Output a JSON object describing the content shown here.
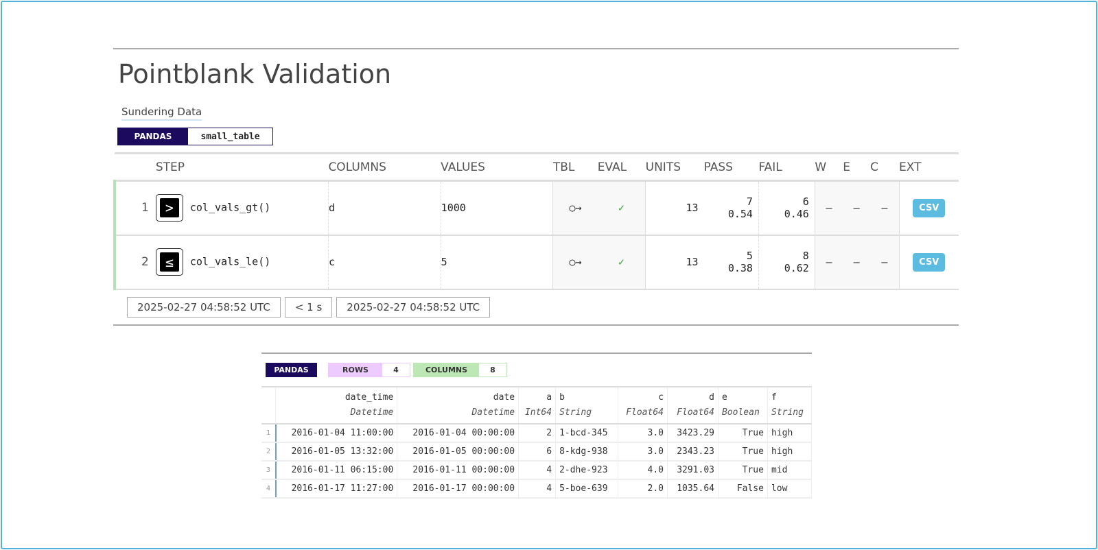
{
  "title": "Pointblank Validation",
  "label": "Sundering Data",
  "tbl_badge": {
    "type": "PANDAS",
    "name": "small_table"
  },
  "headers": {
    "step": "STEP",
    "columns": "COLUMNS",
    "values": "VALUES",
    "tbl": "TBL",
    "eval": "EVAL",
    "units": "UNITS",
    "pass": "PASS",
    "fail": "FAIL",
    "w": "W",
    "e": "E",
    "c": "C",
    "ext": "EXT"
  },
  "steps": [
    {
      "i": "1",
      "icon": "greater-than-icon",
      "glyph": ">",
      "fn": "col_vals_gt()",
      "column": "d",
      "value": "1000",
      "tbl": "○→",
      "eval": "✓",
      "units": "13",
      "pass_n": "7",
      "pass_f": "0.54",
      "fail_n": "6",
      "fail_f": "0.46",
      "w": "—",
      "e": "—",
      "c": "—",
      "ext": "CSV"
    },
    {
      "i": "2",
      "icon": "less-equal-icon",
      "glyph": "≤",
      "fn": "col_vals_le()",
      "column": "c",
      "value": "5",
      "tbl": "○→",
      "eval": "✓",
      "units": "13",
      "pass_n": "5",
      "pass_f": "0.38",
      "fail_n": "8",
      "fail_f": "0.62",
      "w": "—",
      "e": "—",
      "c": "—",
      "ext": "CSV"
    }
  ],
  "footer": {
    "start": "2025-02-27 04:58:52 UTC",
    "duration": "< 1 s",
    "end": "2025-02-27 04:58:52 UTC"
  },
  "preview": {
    "type": "PANDAS",
    "rows_label": "ROWS",
    "rows": "4",
    "cols_label": "COLUMNS",
    "cols": "8",
    "columns": [
      {
        "name": "date_time",
        "dtype": "Datetime"
      },
      {
        "name": "date",
        "dtype": "Datetime"
      },
      {
        "name": "a",
        "dtype": "Int64"
      },
      {
        "name": "b",
        "dtype": "String"
      },
      {
        "name": "c",
        "dtype": "Float64"
      },
      {
        "name": "d",
        "dtype": "Float64"
      },
      {
        "name": "e",
        "dtype": "Boolean"
      },
      {
        "name": "f",
        "dtype": "String"
      }
    ],
    "rows_data": [
      {
        "n": "1",
        "v": [
          "2016-01-04 11:00:00",
          "2016-01-04 00:00:00",
          "2",
          "1-bcd-345",
          "3.0",
          "3423.29",
          "True",
          "high"
        ]
      },
      {
        "n": "2",
        "v": [
          "2016-01-05 13:32:00",
          "2016-01-05 00:00:00",
          "6",
          "8-kdg-938",
          "3.0",
          "2343.23",
          "True",
          "high"
        ]
      },
      {
        "n": "3",
        "v": [
          "2016-01-11 06:15:00",
          "2016-01-11 00:00:00",
          "4",
          "2-dhe-923",
          "4.0",
          "3291.03",
          "True",
          "mid"
        ]
      },
      {
        "n": "4",
        "v": [
          "2016-01-17 11:27:00",
          "2016-01-17 00:00:00",
          "4",
          "5-boe-639",
          "2.0",
          "1035.64",
          "False",
          "low"
        ]
      }
    ]
  },
  "colors": {
    "navy": "#1b0a5e",
    "pass_bar": "#b6e0b6",
    "csv": "#5bbbe0",
    "rows_badge": "#eecbff",
    "cols_badge": "#bde7b5"
  }
}
